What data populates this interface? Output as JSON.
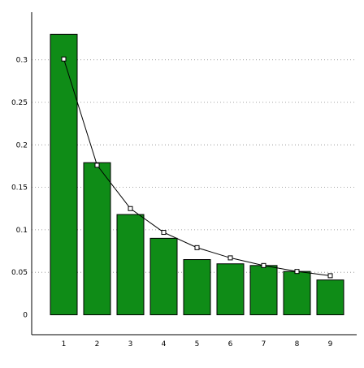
{
  "chart_data": {
    "type": "bar",
    "overlay": "line",
    "categories": [
      "1",
      "2",
      "3",
      "4",
      "5",
      "6",
      "7",
      "8",
      "9"
    ],
    "series": [
      {
        "values": [
          0.33,
          0.179,
          0.118,
          0.09,
          0.065,
          0.06,
          0.058,
          0.051,
          0.041
        ]
      },
      {
        "values": [
          0.301,
          0.176,
          0.125,
          0.097,
          0.079,
          0.067,
          0.058,
          0.051,
          0.046
        ]
      }
    ],
    "ylim": [
      0,
      0.35
    ],
    "y_ticks": [
      0,
      0.05,
      0.1,
      0.15,
      0.2,
      0.25,
      0.3
    ],
    "y_tick_labels": [
      "0",
      "0.05",
      "0.1",
      "0.15",
      "0.2",
      "0.25",
      "0.3"
    ],
    "grid": "horizontal dotted",
    "colors": {
      "bar_fill": "#0f8c17",
      "bar_stroke": "#000000",
      "line": "#000000",
      "marker_fill": "#ffffff"
    }
  }
}
